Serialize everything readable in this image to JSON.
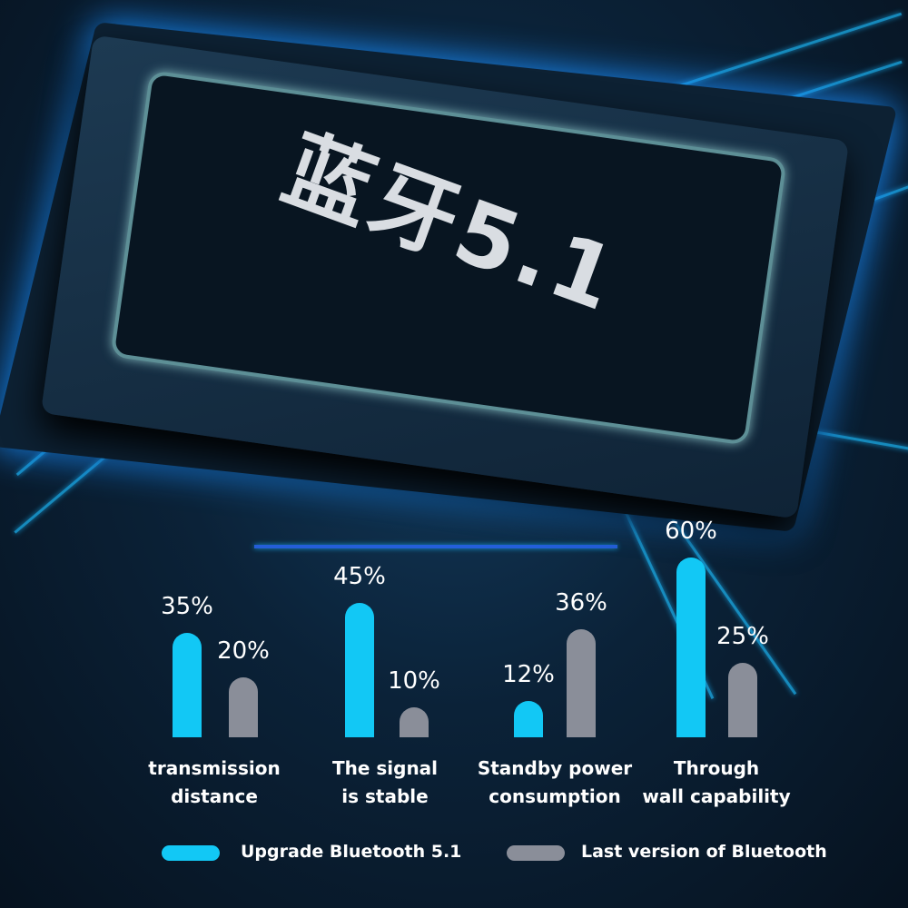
{
  "chip_label": "蓝牙5.1",
  "colors": {
    "upgrade": "#12c8f5",
    "last": "#8a8e99"
  },
  "chart_data": {
    "type": "bar",
    "categories": [
      "transmission distance",
      "The signal is stable",
      "Standby power consumption",
      "Through wall capability"
    ],
    "category_lines": [
      [
        "transmission",
        "distance"
      ],
      [
        "The signal",
        "is stable"
      ],
      [
        "Standby power",
        "consumption"
      ],
      [
        "Through",
        "wall capability"
      ]
    ],
    "series": [
      {
        "name": "Upgrade Bluetooth 5.1",
        "values": [
          35,
          45,
          12,
          60
        ],
        "labels": [
          "35%",
          "45%",
          "12%",
          "60%"
        ]
      },
      {
        "name": "Last version of Bluetooth",
        "values": [
          20,
          10,
          36,
          25
        ],
        "labels": [
          "20%",
          "10%",
          "36%",
          "25%"
        ]
      }
    ],
    "unit": "%",
    "legend": "bottom",
    "grid": false
  }
}
